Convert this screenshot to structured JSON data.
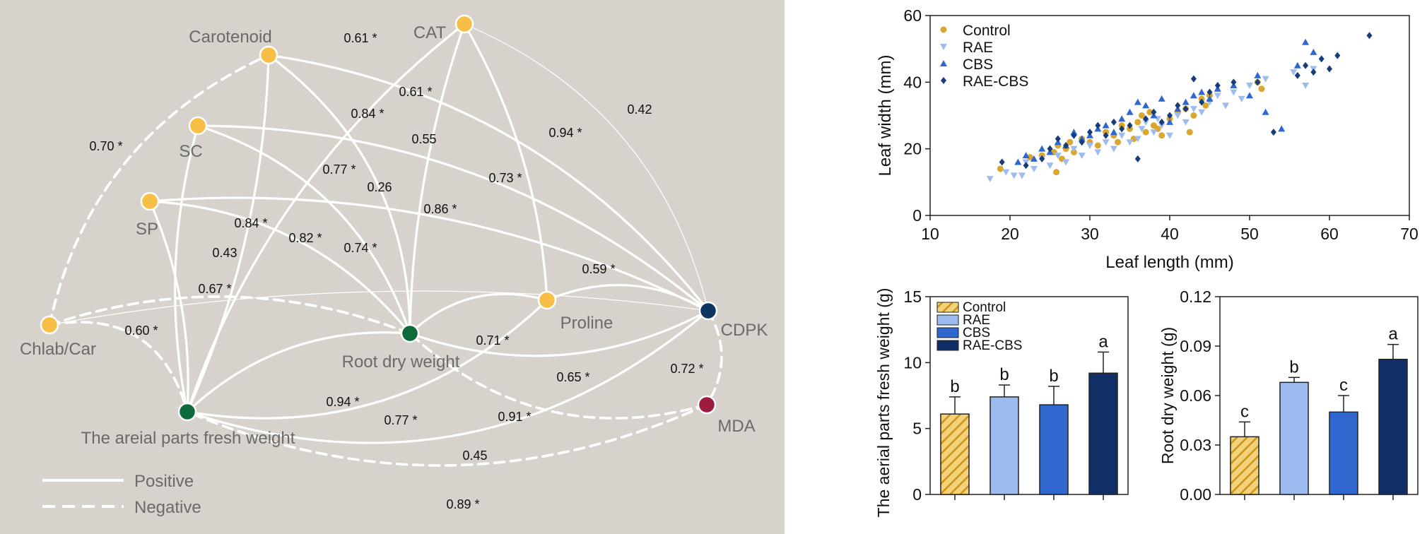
{
  "network": {
    "background": "#d7d3cc",
    "edge_color": "#ffffff",
    "node_label_color": "#6a6a6a",
    "nodes": [
      {
        "id": "Carotenoid",
        "label": "Carotenoid",
        "color": "#f7bf45"
      },
      {
        "id": "CAT",
        "label": "CAT",
        "color": "#f7bf45"
      },
      {
        "id": "SC",
        "label": "SC",
        "color": "#f7bf45"
      },
      {
        "id": "SP",
        "label": "SP",
        "color": "#f7bf45"
      },
      {
        "id": "ChlabCar",
        "label": "Chlab/Car",
        "color": "#f7bf45"
      },
      {
        "id": "Proline",
        "label": "Proline",
        "color": "#f7bf45"
      },
      {
        "id": "CDPK",
        "label": "CDPK",
        "color": "#0d3561"
      },
      {
        "id": "RootDW",
        "label": "Root dry weight",
        "color": "#0e6a3a"
      },
      {
        "id": "AerialFW",
        "label": "The areial parts fresh weight",
        "color": "#0e6a3a"
      },
      {
        "id": "MDA",
        "label": "MDA",
        "color": "#9c1b3e"
      }
    ],
    "edges": [
      {
        "from": "ChlabCar",
        "to": "Carotenoid",
        "label": "0.70 *",
        "type": "negative"
      },
      {
        "from": "Carotenoid",
        "to": "CDPK",
        "label": "0.61 *",
        "type": "positive"
      },
      {
        "from": "SC",
        "to": "CDPK",
        "label": "0.61 *",
        "type": "positive"
      },
      {
        "from": "SP",
        "to": "CDPK",
        "label": "0.55",
        "type": "positive"
      },
      {
        "from": "CAT",
        "to": "CDPK",
        "label": "0.42",
        "type": "positive"
      },
      {
        "from": "CAT",
        "to": "Proline",
        "label": "0.94 *",
        "type": "positive"
      },
      {
        "from": "Carotenoid",
        "to": "RootDW",
        "label": "0.84 *",
        "type": "positive"
      },
      {
        "from": "SC",
        "to": "RootDW",
        "label": "0.77 *",
        "type": "positive"
      },
      {
        "from": "CAT",
        "to": "RootDW",
        "label": "0.73 *",
        "type": "positive"
      },
      {
        "from": "CAT",
        "to": "AerialFW",
        "label": "0.86 *",
        "type": "positive"
      },
      {
        "from": "ChlabCar",
        "to": "CDPK",
        "label": "0.26",
        "type": "positive"
      },
      {
        "from": "SP",
        "to": "RootDW",
        "label": "0.74 *",
        "type": "positive"
      },
      {
        "from": "SC",
        "to": "AerialFW",
        "label": "0.84 *",
        "type": "positive"
      },
      {
        "from": "Carotenoid",
        "to": "AerialFW",
        "label": "0.82 *",
        "type": "positive"
      },
      {
        "from": "ChlabCar",
        "to": "RootDW",
        "label": "0.43",
        "type": "negative"
      },
      {
        "from": "SP",
        "to": "AerialFW",
        "label": "0.67 *",
        "type": "positive"
      },
      {
        "from": "ChlabCar",
        "to": "AerialFW",
        "label": "0.60 *",
        "type": "negative"
      },
      {
        "from": "Proline",
        "to": "CDPK",
        "label": "0.59 *",
        "type": "positive"
      },
      {
        "from": "Proline",
        "to": "RootDW",
        "label": "0.71 *",
        "type": "positive"
      },
      {
        "from": "CDPK",
        "to": "RootDW",
        "label": "0.65 *",
        "type": "positive"
      },
      {
        "from": "CDPK",
        "to": "MDA",
        "label": "0.72 *",
        "type": "negative"
      },
      {
        "from": "MDA",
        "to": "RootDW",
        "label": "0.91 *",
        "type": "negative"
      },
      {
        "from": "RootDW",
        "to": "AerialFW",
        "label": "0.94 *",
        "type": "positive"
      },
      {
        "from": "Proline",
        "to": "AerialFW",
        "label": "0.77 *",
        "type": "positive"
      },
      {
        "from": "CDPK",
        "to": "AerialFW",
        "label": "0.45",
        "type": "positive"
      },
      {
        "from": "MDA",
        "to": "AerialFW",
        "label": "0.89 *",
        "type": "negative"
      }
    ],
    "legend": [
      {
        "label": "Positive",
        "type": "positive"
      },
      {
        "label": "Negative",
        "type": "negative"
      }
    ]
  },
  "chart_data": [
    {
      "type": "scatter",
      "xlabel": "Leaf length (mm)",
      "ylabel": "Leaf width (mm)",
      "xlim": [
        10,
        70
      ],
      "ylim": [
        0,
        60
      ],
      "xticks": [
        10,
        20,
        30,
        40,
        50,
        60,
        70
      ],
      "yticks": [
        0,
        20,
        40,
        60
      ],
      "legend_position": "top-left",
      "series": [
        {
          "name": "Control",
          "marker": "circle",
          "color": "#d9a62e",
          "points": [
            [
              18.8,
              14
            ],
            [
              22.5,
              17.5
            ],
            [
              24,
              18
            ],
            [
              25.5,
              19
            ],
            [
              25.8,
              13
            ],
            [
              26,
              21
            ],
            [
              26.5,
              17
            ],
            [
              27,
              20
            ],
            [
              27.5,
              22
            ],
            [
              28,
              19
            ],
            [
              29,
              23
            ],
            [
              30,
              22
            ],
            [
              31,
              21
            ],
            [
              32,
              25
            ],
            [
              33,
              24
            ],
            [
              33.5,
              22
            ],
            [
              34,
              27
            ],
            [
              35,
              26
            ],
            [
              35.5,
              23
            ],
            [
              36,
              28
            ],
            [
              36.5,
              30
            ],
            [
              37,
              25
            ],
            [
              37.5,
              31
            ],
            [
              38,
              27
            ],
            [
              38.5,
              26
            ],
            [
              39,
              24
            ],
            [
              40,
              29
            ],
            [
              41,
              31
            ],
            [
              42,
              32
            ],
            [
              42.5,
              25
            ],
            [
              43,
              30
            ],
            [
              44,
              35
            ],
            [
              44.5,
              33
            ],
            [
              45,
              36
            ],
            [
              51,
              40
            ],
            [
              51.5,
              38
            ]
          ]
        },
        {
          "name": "RAE",
          "marker": "triangle-down",
          "color": "#9dbbee",
          "points": [
            [
              17.5,
              11
            ],
            [
              19.5,
              13
            ],
            [
              20.5,
              12
            ],
            [
              21.5,
              12
            ],
            [
              22,
              16
            ],
            [
              23,
              14
            ],
            [
              24,
              17
            ],
            [
              25,
              15
            ],
            [
              26,
              18
            ],
            [
              27,
              16
            ],
            [
              28,
              20
            ],
            [
              29,
              18
            ],
            [
              30,
              21
            ],
            [
              31,
              19
            ],
            [
              32,
              22
            ],
            [
              33,
              20
            ],
            [
              34,
              24
            ],
            [
              35,
              22
            ],
            [
              36,
              23
            ],
            [
              36.5,
              26
            ],
            [
              37,
              28
            ],
            [
              38,
              25
            ],
            [
              38.5,
              29
            ],
            [
              39,
              27
            ],
            [
              40,
              24
            ],
            [
              41,
              30
            ],
            [
              42,
              28
            ],
            [
              43,
              32
            ],
            [
              44,
              31
            ],
            [
              45,
              34
            ],
            [
              46,
              36
            ],
            [
              47,
              33
            ],
            [
              48,
              37
            ],
            [
              49,
              35
            ],
            [
              50,
              39
            ],
            [
              52,
              41
            ],
            [
              55.5,
              43
            ],
            [
              57,
              39
            ],
            [
              58,
              44
            ]
          ]
        },
        {
          "name": "CBS",
          "marker": "triangle-up",
          "color": "#2f67cf",
          "points": [
            [
              21,
              16
            ],
            [
              22,
              18
            ],
            [
              23,
              17
            ],
            [
              24,
              20
            ],
            [
              25,
              19
            ],
            [
              26,
              22
            ],
            [
              27,
              21
            ],
            [
              28,
              25
            ],
            [
              29,
              23
            ],
            [
              30,
              24
            ],
            [
              31,
              26
            ],
            [
              32,
              27
            ],
            [
              33,
              25
            ],
            [
              34,
              29
            ],
            [
              35,
              31
            ],
            [
              36,
              34
            ],
            [
              37,
              33
            ],
            [
              38,
              30
            ],
            [
              39,
              35
            ],
            [
              40,
              28
            ],
            [
              41,
              32
            ],
            [
              42,
              34
            ],
            [
              43,
              36
            ],
            [
              44,
              37
            ],
            [
              45,
              35
            ],
            [
              46,
              38
            ],
            [
              48,
              39
            ],
            [
              50,
              36
            ],
            [
              51,
              42
            ],
            [
              52,
              31
            ],
            [
              54,
              26
            ],
            [
              56,
              45
            ],
            [
              57,
              52
            ],
            [
              58,
              49
            ]
          ]
        },
        {
          "name": "RAE-CBS",
          "marker": "diamond",
          "color": "#163d7a",
          "points": [
            [
              19,
              16
            ],
            [
              22,
              15
            ],
            [
              24,
              17
            ],
            [
              25,
              20
            ],
            [
              26,
              23
            ],
            [
              27,
              21
            ],
            [
              28,
              24
            ],
            [
              29,
              22
            ],
            [
              30,
              25
            ],
            [
              31,
              27
            ],
            [
              32,
              24
            ],
            [
              33,
              28
            ],
            [
              34,
              26
            ],
            [
              35,
              27
            ],
            [
              36,
              17
            ],
            [
              37,
              29
            ],
            [
              38,
              31
            ],
            [
              39,
              28
            ],
            [
              40,
              30
            ],
            [
              41,
              33
            ],
            [
              42,
              32
            ],
            [
              43,
              41
            ],
            [
              44,
              34
            ],
            [
              45,
              37
            ],
            [
              46,
              39
            ],
            [
              48,
              40
            ],
            [
              51,
              40
            ],
            [
              53,
              25
            ],
            [
              56,
              42
            ],
            [
              57,
              45
            ],
            [
              58,
              43
            ],
            [
              59,
              47
            ],
            [
              60,
              44
            ],
            [
              61,
              48
            ],
            [
              65,
              54
            ]
          ]
        }
      ]
    },
    {
      "type": "bar",
      "ylabel": "The aerial parts fresh weight (g)",
      "ylim": [
        0,
        15
      ],
      "yticks": [
        "0",
        "5",
        "10",
        "15"
      ],
      "categories": [
        "Control",
        "RAE",
        "CBS",
        "RAE-CBS"
      ],
      "values": [
        6.1,
        7.4,
        6.8,
        9.2
      ],
      "errors": [
        1.3,
        0.9,
        1.4,
        1.6
      ],
      "letters": [
        "b",
        "b",
        "b",
        "a"
      ],
      "colors": [
        "#e2b43c",
        "#9dbbee",
        "#2f67cf",
        "#102f66"
      ],
      "hatched": [
        true,
        false,
        false,
        false
      ],
      "legend_position": "top-left"
    },
    {
      "type": "bar",
      "ylabel": "Root dry weight (g)",
      "ylim": [
        0,
        0.12
      ],
      "yticks": [
        "0.00",
        "0.03",
        "0.06",
        "0.09",
        "0.12"
      ],
      "categories": [
        "Control",
        "RAE",
        "CBS",
        "RAE-CBS"
      ],
      "values": [
        0.035,
        0.068,
        0.05,
        0.082
      ],
      "errors": [
        0.009,
        0.003,
        0.01,
        0.009
      ],
      "letters": [
        "c",
        "b",
        "c",
        "a"
      ],
      "colors": [
        "#e2b43c",
        "#9dbbee",
        "#2f67cf",
        "#102f66"
      ],
      "hatched": [
        true,
        false,
        false,
        false
      ]
    }
  ]
}
